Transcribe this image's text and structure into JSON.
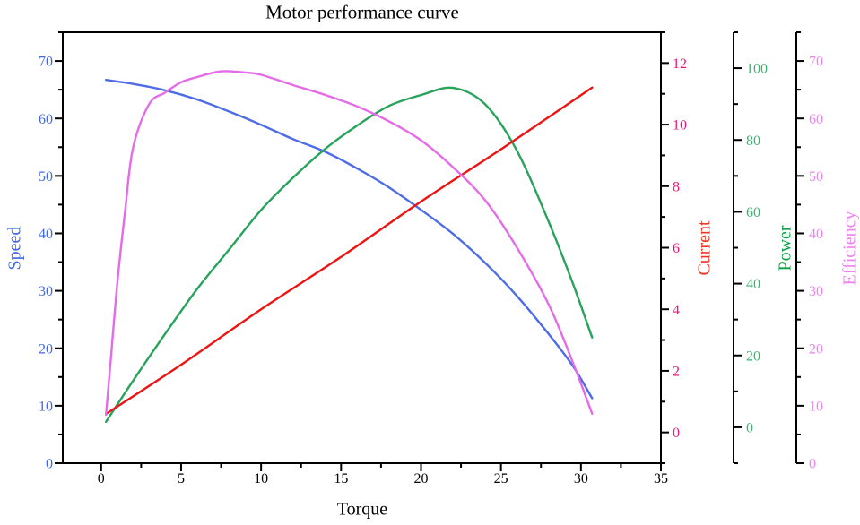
{
  "chart_data": {
    "type": "line",
    "title": "Motor performance curve",
    "xlabel": "Torque",
    "frame_color": "#000000",
    "background_color": "#ffffff",
    "x_axis": {
      "min": -2.4,
      "max": 35,
      "major_ticks": [
        0,
        5,
        10,
        15,
        20,
        25,
        30,
        35
      ],
      "minor_ticks": [
        2.5,
        7.5,
        12.5,
        17.5,
        22.5,
        27.5,
        32.5
      ],
      "tick_label_color": "#000000",
      "label_color": "#000000"
    },
    "y_axes": [
      {
        "id": "speed",
        "label": "Speed",
        "side": "left",
        "min": 0,
        "max": 75,
        "major_ticks": [
          0,
          10,
          20,
          30,
          40,
          50,
          60,
          70
        ],
        "minor_ticks": [
          5,
          15,
          25,
          35,
          45,
          55,
          65,
          75
        ],
        "tick_label_color": "#4169e1",
        "label_color": "#4169e1"
      },
      {
        "id": "current",
        "label": "Current",
        "side": "right-inner",
        "min": -1,
        "max": 13,
        "major_ticks": [
          0,
          2,
          4,
          6,
          8,
          10,
          12
        ],
        "minor_ticks": [
          -1,
          1,
          3,
          5,
          7,
          9,
          11,
          13
        ],
        "tick_label_color": "#e8187c",
        "label_color": "#ef3725"
      },
      {
        "id": "power",
        "label": "Power",
        "side": "right-middle",
        "min": -10,
        "max": 110,
        "major_ticks": [
          0,
          20,
          40,
          60,
          80,
          100
        ],
        "minor_ticks": [
          -10,
          10,
          30,
          50,
          70,
          90,
          110
        ],
        "tick_label_color": "#3cb371",
        "label_color": "#0ba142"
      },
      {
        "id": "efficiency",
        "label": "Efficiency",
        "side": "right-outer",
        "min": 0,
        "max": 75,
        "major_ticks": [
          0,
          10,
          20,
          30,
          40,
          50,
          60,
          70
        ],
        "minor_ticks": [
          5,
          15,
          25,
          35,
          45,
          55,
          65,
          75
        ],
        "tick_label_color": "#ee82ee",
        "label_color": "#ee82ee"
      }
    ],
    "series": [
      {
        "id": "speed",
        "name": "Speed",
        "axis": "speed",
        "color": "#4d6ce5",
        "x": [
          0.3,
          2,
          4,
          6,
          8,
          10,
          12,
          14,
          16,
          18,
          20,
          22,
          24,
          26,
          28,
          29.5,
          30.7
        ],
        "y": [
          66.7,
          66.0,
          64.9,
          63.3,
          61.2,
          58.9,
          56.4,
          54.2,
          51.3,
          48.0,
          44.1,
          39.9,
          34.9,
          29.1,
          22.4,
          16.9,
          11.3
        ]
      },
      {
        "id": "power",
        "name": "Power",
        "axis": "power",
        "color": "#28a35c",
        "x": [
          0.3,
          2,
          4,
          6,
          8,
          10,
          12,
          14,
          16,
          18,
          20,
          22,
          24,
          26,
          28,
          29.5,
          30.7
        ],
        "y": [
          1.5,
          13,
          26,
          38.5,
          49.5,
          60.5,
          69.5,
          77.5,
          84,
          89.5,
          92.5,
          94.5,
          90,
          77,
          57,
          40,
          25
        ]
      },
      {
        "id": "current",
        "name": "Current",
        "axis": "current",
        "color": "#ed1414",
        "x": [
          0.3,
          5,
          10,
          15,
          20,
          25,
          30.7
        ],
        "y": [
          0.6,
          2.2,
          4.0,
          5.7,
          7.5,
          9.2,
          11.2
        ]
      },
      {
        "id": "efficiency",
        "name": "Efficiency",
        "axis": "efficiency",
        "color": "#e56be8",
        "x": [
          0.3,
          0.6,
          1,
          1.5,
          2,
          3,
          4,
          5,
          6,
          7.5,
          9,
          10,
          12,
          14,
          16,
          18,
          20,
          22,
          24,
          26,
          28,
          29.5,
          30.7
        ],
        "y": [
          8.4,
          18,
          31,
          44,
          55,
          62.5,
          64.5,
          66.3,
          67.2,
          68.2,
          68,
          67.6,
          65.8,
          64.1,
          62.1,
          59.5,
          56.2,
          51.5,
          45.8,
          37.5,
          27.5,
          17.5,
          8.6
        ]
      }
    ]
  }
}
